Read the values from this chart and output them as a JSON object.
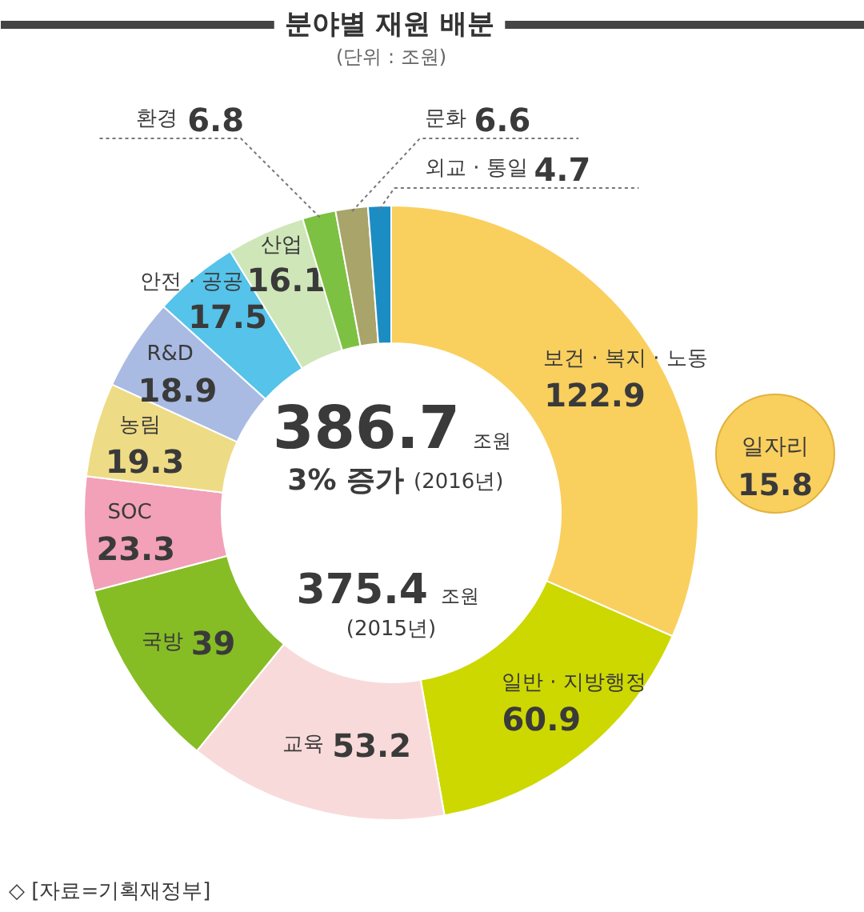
{
  "chart_data": {
    "type": "donut",
    "title": "분야별 재원 배분",
    "subtitle": "(단위 : 조원)",
    "categories": [
      "보건 · 복지 · 노동",
      "일반 · 지방행정",
      "교육",
      "국방",
      "SOC",
      "농림",
      "R&D",
      "안전 · 공공",
      "산업",
      "환경",
      "문화",
      "외교 · 통일"
    ],
    "values": [
      122.9,
      60.9,
      53.2,
      39,
      23.3,
      19.3,
      18.9,
      17.5,
      16.1,
      6.8,
      6.6,
      4.7
    ],
    "colors": [
      "#f9cf5e",
      "#cdd800",
      "#f9dada",
      "#86bd25",
      "#f2a1b8",
      "#eedb85",
      "#a9bbe3",
      "#55c3ea",
      "#cfe6b9",
      "#7dc142",
      "#a8a46a",
      "#1b8dc3"
    ],
    "data_labels": true,
    "annotations": [
      "386.7 조원",
      "3% 증가 (2016년)",
      "375.4 조원",
      "(2015년)",
      "일자리 15.8",
      "◇ [자료=기획재정부]"
    ]
  }
}
